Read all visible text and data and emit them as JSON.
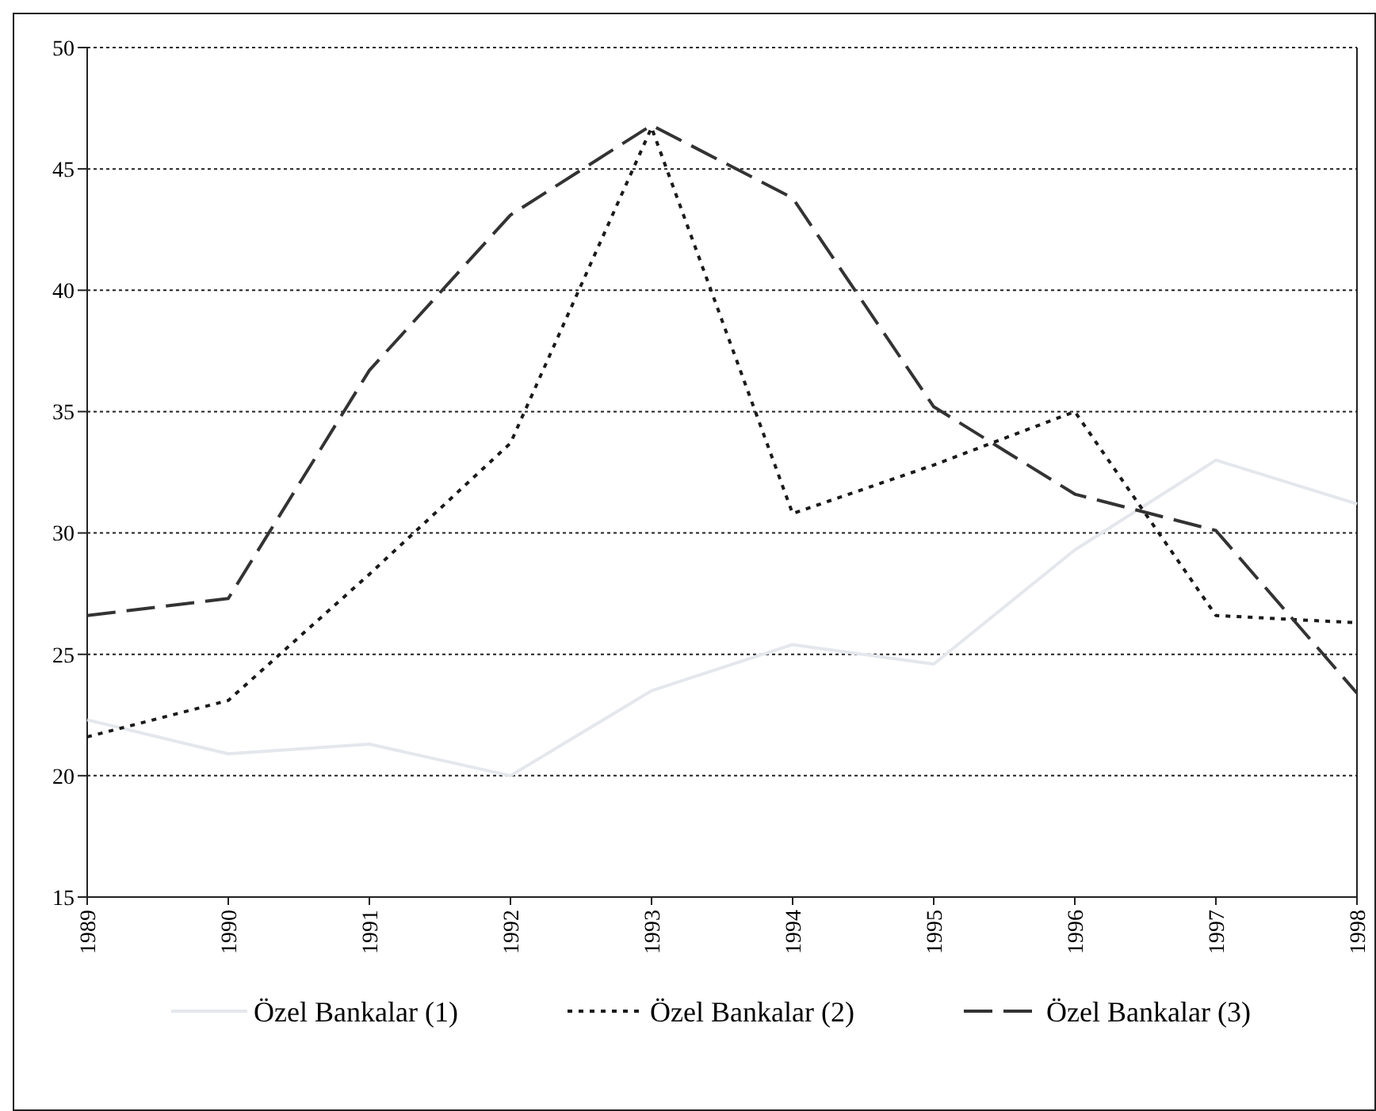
{
  "chart_data": {
    "type": "line",
    "categories": [
      "1989",
      "1990",
      "1991",
      "1992",
      "1993",
      "1994",
      "1995",
      "1996",
      "1997",
      "1998"
    ],
    "series": [
      {
        "name": "Özel Bankalar (1)",
        "color": "#e4e7ec",
        "line_style": "solid",
        "values": [
          22.3,
          20.9,
          21.3,
          20.0,
          23.5,
          25.4,
          24.6,
          29.3,
          33.0,
          31.2
        ]
      },
      {
        "name": "Özel Bankalar (2)",
        "color": "#1a1a1a",
        "line_style": "dotted",
        "values": [
          21.6,
          23.1,
          28.3,
          33.7,
          46.7,
          30.8,
          32.8,
          35.0,
          26.6,
          26.3
        ]
      },
      {
        "name": "Özel Bankalar (3)",
        "color": "#333333",
        "line_style": "dashed",
        "values": [
          26.6,
          27.3,
          36.7,
          43.1,
          46.8,
          43.8,
          35.2,
          31.6,
          30.1,
          23.4
        ]
      }
    ],
    "ylim": [
      15,
      50
    ],
    "yticks": [
      15,
      20,
      25,
      30,
      35,
      40,
      45,
      50
    ],
    "grid": "y",
    "legend": "bottom",
    "marker": "none"
  }
}
